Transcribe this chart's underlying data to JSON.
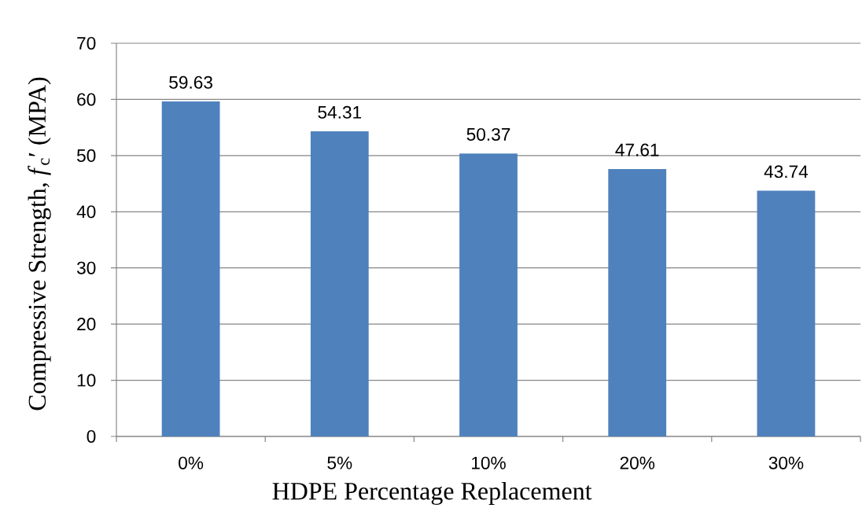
{
  "chart_data": {
    "type": "bar",
    "xlabel": "HDPE Percentage Replacement",
    "ylabel": "Compressive Strength, *f*$_{c}$′ (MPA)",
    "categories": [
      "0%",
      "5%",
      "10%",
      "20%",
      "30%"
    ],
    "values": [
      59.63,
      54.31,
      50.37,
      47.61,
      43.74
    ],
    "color": "#4f81bd",
    "ylim": [
      0,
      70
    ],
    "yticks": [
      0,
      10,
      20,
      30,
      40,
      50,
      60,
      70
    ],
    "grid": "y",
    "data_labels": true
  }
}
